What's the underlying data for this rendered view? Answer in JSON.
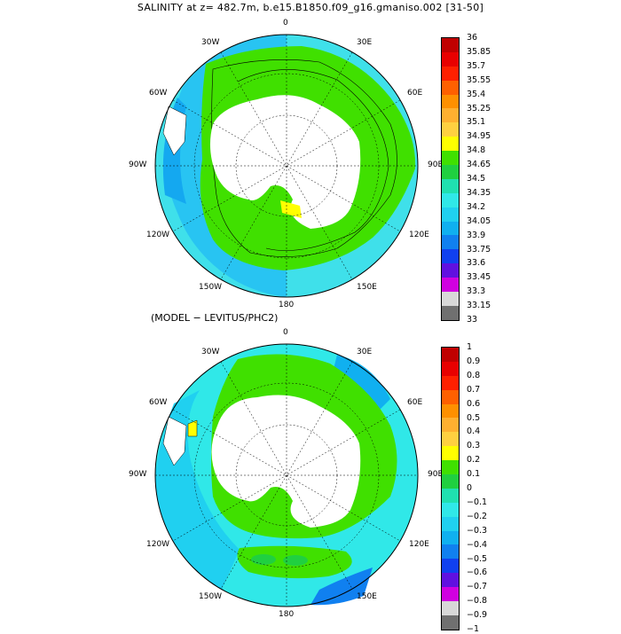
{
  "title": "SALINITY at z= 482.7m, b.e15.B1850.f09_g16.gmaniso.002 [31-50]",
  "subtitle": "(MODEL − LEVITUS/PHC2)",
  "map_labels": {
    "lon_0": "0",
    "lon_30e": "30E",
    "lon_60e": "60E",
    "lon_90e": "90E",
    "lon_120e": "120E",
    "lon_150e": "150E",
    "lon_180": "180",
    "lon_150w": "150W",
    "lon_120w": "120W",
    "lon_90w": "90W",
    "lon_60w": "60W",
    "lon_30w": "30W"
  },
  "top_colorbar": {
    "labels": [
      "36",
      "35.85",
      "35.7",
      "35.55",
      "35.4",
      "35.25",
      "35.1",
      "34.95",
      "34.8",
      "34.65",
      "34.5",
      "34.35",
      "34.2",
      "34.05",
      "33.9",
      "33.75",
      "33.6",
      "33.45",
      "33.3",
      "33.15",
      "33"
    ],
    "colors": [
      "#c00000",
      "#e80000",
      "#ff2000",
      "#ff6000",
      "#ff9000",
      "#ffb030",
      "#ffd040",
      "#ffff00",
      "#40e000",
      "#20d040",
      "#20e0b0",
      "#30e8e8",
      "#20d0f0",
      "#10b0f0",
      "#1080f0",
      "#1040f0",
      "#6010e0",
      "#d000e0",
      "#d8d8d8",
      "#707070"
    ]
  },
  "bottom_colorbar": {
    "labels": [
      "1",
      "0.9",
      "0.8",
      "0.7",
      "0.6",
      "0.5",
      "0.4",
      "0.3",
      "0.2",
      "0.1",
      "0",
      "−0.1",
      "−0.2",
      "−0.3",
      "−0.4",
      "−0.5",
      "−0.6",
      "−0.7",
      "−0.8",
      "−0.9",
      "−1"
    ],
    "colors": [
      "#c00000",
      "#e80000",
      "#ff2000",
      "#ff6000",
      "#ff9000",
      "#ffb030",
      "#ffd040",
      "#ffff00",
      "#40e000",
      "#20d040",
      "#20e0b0",
      "#30e8e8",
      "#20d0f0",
      "#10b0f0",
      "#1080f0",
      "#1040f0",
      "#6010e0",
      "#d000e0",
      "#d8d8d8",
      "#707070"
    ]
  }
}
